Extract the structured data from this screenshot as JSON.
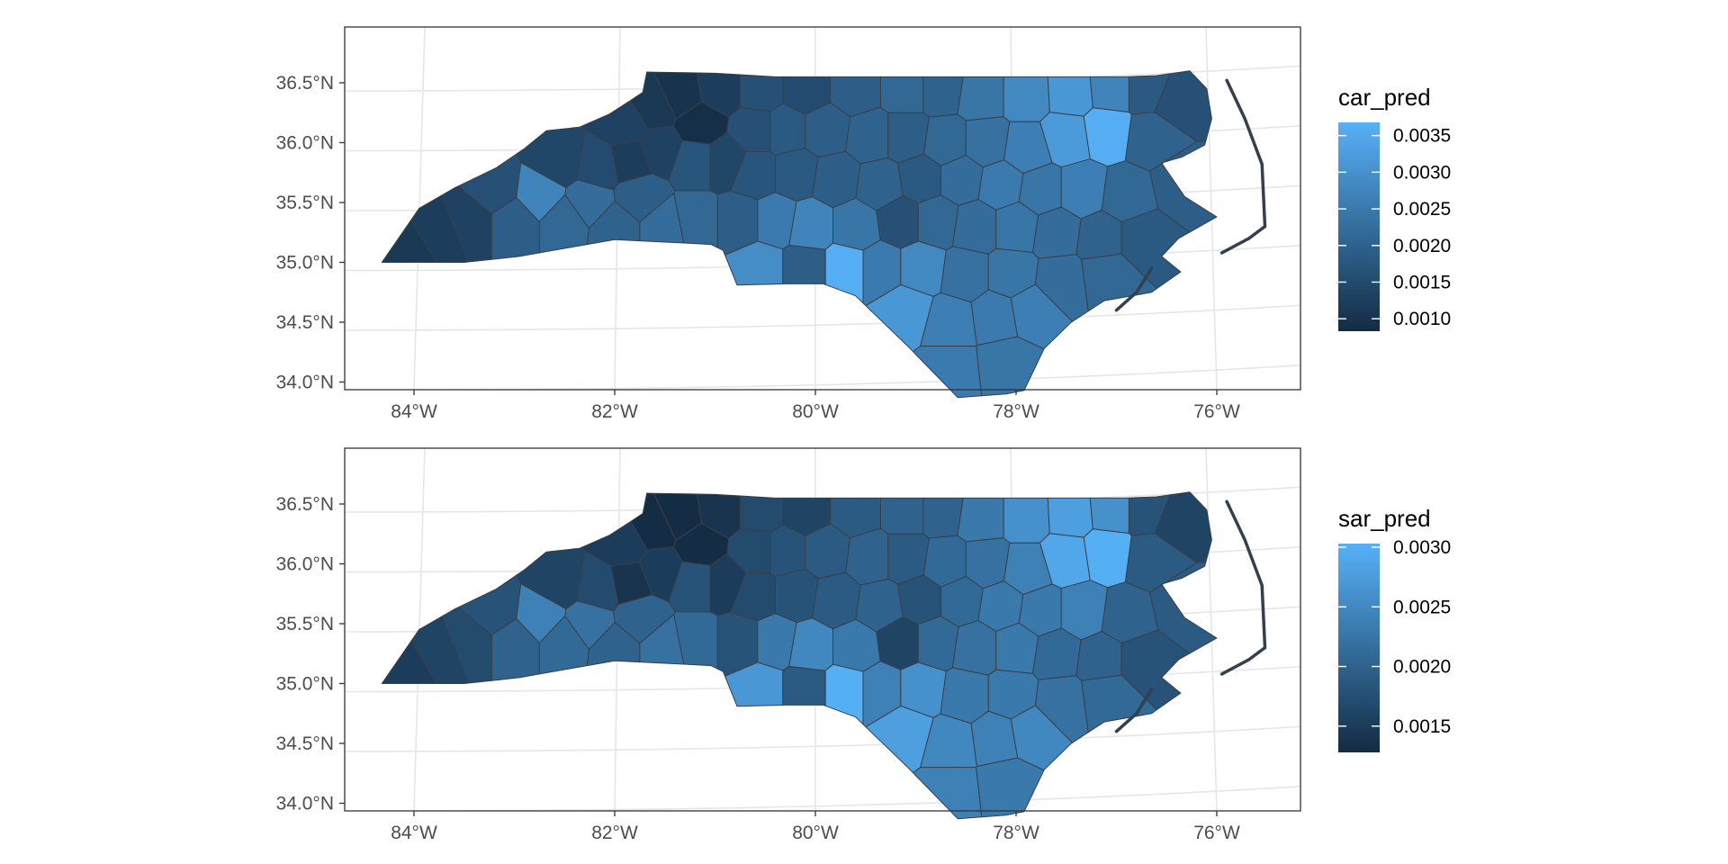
{
  "map": {
    "longitude_ticks": [
      "84°W",
      "82°W",
      "80°W",
      "78°W",
      "76°W"
    ],
    "latitude_ticks": [
      "36.5°N",
      "36.0°N",
      "35.5°N",
      "35.0°N",
      "34.5°N",
      "34.0°N"
    ]
  },
  "panels": [
    {
      "legend_title": "car_pred",
      "legend_labels": [
        "0.0035",
        "0.0030",
        "0.0025",
        "0.0020",
        "0.0015",
        "0.0010"
      ],
      "legend_values": [
        0.0035,
        0.003,
        0.0025,
        0.002,
        0.0015,
        0.001
      ],
      "scale_min": 0.00083,
      "scale_max": 0.00368,
      "offset": 2e-05
    },
    {
      "legend_title": "sar_pred",
      "legend_labels": [
        "0.0030",
        "0.0025",
        "0.0020",
        "0.0015"
      ],
      "legend_values": [
        0.003,
        0.0025,
        0.002,
        0.0015
      ],
      "scale_min": 0.00128,
      "scale_max": 0.00303,
      "offset": 0
    }
  ],
  "colors": {
    "scale_low": "#132b43",
    "scale_high": "#56b1f7",
    "border": "#333333",
    "grid": "#e6e6e6"
  }
}
